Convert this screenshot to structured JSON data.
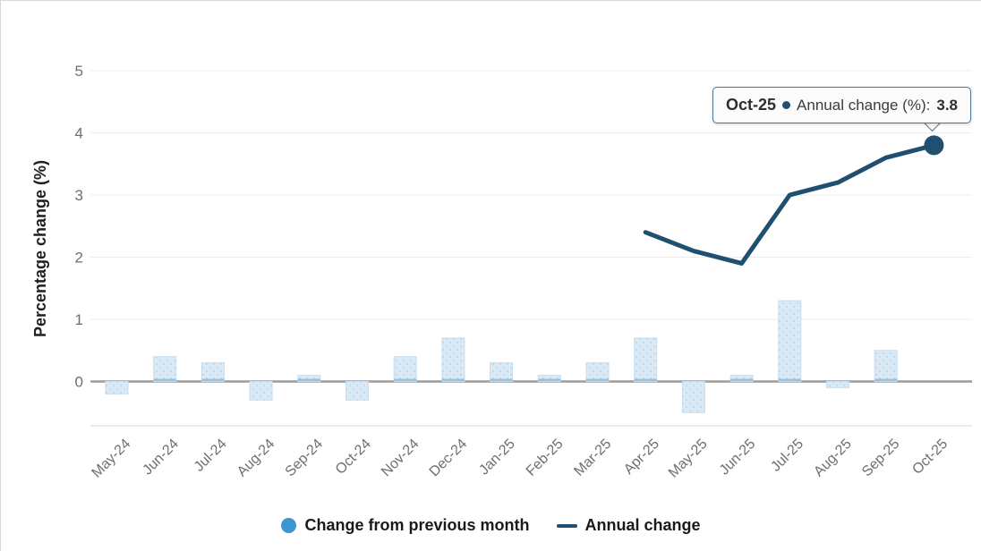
{
  "chart_data": {
    "type": "bar+line",
    "title": "",
    "xlabel": "",
    "ylabel": "Percentage change (%)",
    "categories": [
      "May-24",
      "Jun-24",
      "Jul-24",
      "Aug-24",
      "Sep-24",
      "Oct-24",
      "Nov-24",
      "Dec-24",
      "Jan-25",
      "Feb-25",
      "Mar-25",
      "Apr-25",
      "May-25",
      "Jun-25",
      "Jul-25",
      "Aug-25",
      "Sep-25",
      "Oct-25"
    ],
    "series": [
      {
        "name": "Change from previous month",
        "type": "bar",
        "values": [
          -0.2,
          0.4,
          0.3,
          -0.3,
          0.1,
          -0.3,
          0.4,
          0.7,
          0.3,
          0.1,
          0.3,
          0.7,
          -0.5,
          0.1,
          1.3,
          -0.1,
          0.5,
          null
        ]
      },
      {
        "name": "Annual change",
        "type": "line",
        "values": [
          null,
          null,
          null,
          null,
          null,
          null,
          null,
          null,
          null,
          null,
          null,
          2.4,
          2.1,
          1.9,
          3.0,
          3.2,
          3.6,
          3.8
        ]
      }
    ],
    "yticks": [
      0,
      1,
      2,
      3,
      4,
      5
    ],
    "ylim": [
      -0.7,
      5.2
    ],
    "grid": true,
    "legend_position": "bottom",
    "highlighted_point": {
      "category": "Oct-25",
      "series": "Annual change",
      "value": 3.8
    }
  },
  "axis": {
    "y_title": "Percentage change (%)"
  },
  "tooltip": {
    "label": "Oct-25",
    "series_label": "Annual change (%):",
    "value": "3.8"
  },
  "legend": {
    "bar_label": "Change from previous month",
    "line_label": "Annual change"
  },
  "colors": {
    "bar_fill": "#d9eaf6",
    "bar_dot": "#aecfe6",
    "bar_border": "#c7ddef",
    "bar_base_edge": "#9bbfd9",
    "bar_legend_swatch": "#3b97cd",
    "line": "#1f506f",
    "zero_line": "#9c9c9c",
    "gridline": "#ececec",
    "bottom_axis_line": "#c5d9ea",
    "tooltip_border": "#4d7795",
    "tick_text": "#6e6e6e"
  }
}
